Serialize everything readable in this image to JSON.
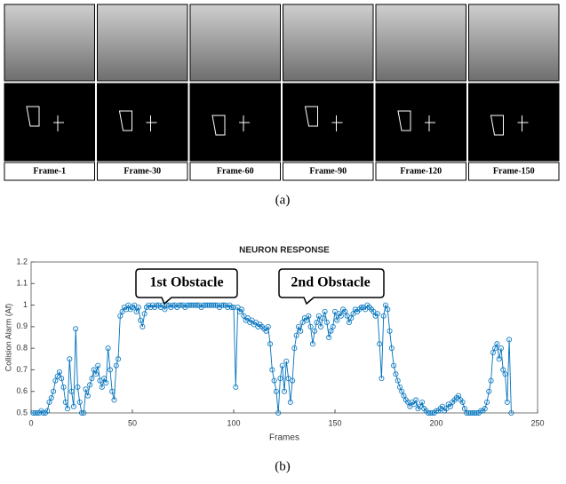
{
  "figure_a": {
    "frames": [
      "Frame-1",
      "Frame-30",
      "Frame-60",
      "Frame-90",
      "Frame-120",
      "Frame-150"
    ],
    "caption": "(a)"
  },
  "chart_data": {
    "type": "line",
    "title": "NEURON RESPONSE",
    "xlabel": "Frames",
    "ylabel": "Collision Alarm (Af)",
    "annotations": [
      "1st Obstacle",
      "2nd Obstacle"
    ],
    "caption": "(b)",
    "color": "#0072bd",
    "xlim": [
      0,
      250
    ],
    "xticks": [
      0,
      50,
      100,
      150,
      200,
      250
    ],
    "ylim": [
      0.5,
      1.2
    ],
    "yticks": [
      0.5,
      0.6,
      0.7,
      0.8,
      0.9,
      1,
      1.1,
      1.2
    ],
    "x": [
      1,
      2,
      3,
      4,
      5,
      6,
      7,
      8,
      9,
      10,
      11,
      12,
      13,
      14,
      15,
      16,
      17,
      18,
      19,
      20,
      21,
      22,
      23,
      24,
      25,
      26,
      27,
      28,
      29,
      30,
      31,
      32,
      33,
      34,
      35,
      36,
      37,
      38,
      39,
      40,
      41,
      42,
      43,
      44,
      45,
      46,
      47,
      48,
      49,
      50,
      51,
      52,
      53,
      54,
      55,
      56,
      57,
      58,
      59,
      60,
      61,
      62,
      63,
      64,
      65,
      66,
      67,
      68,
      69,
      70,
      71,
      72,
      73,
      74,
      75,
      76,
      77,
      78,
      79,
      80,
      81,
      82,
      83,
      84,
      85,
      86,
      87,
      88,
      89,
      90,
      91,
      92,
      93,
      94,
      95,
      96,
      97,
      98,
      99,
      100,
      101,
      102,
      103,
      104,
      105,
      106,
      107,
      108,
      109,
      110,
      111,
      112,
      113,
      114,
      115,
      116,
      117,
      118,
      119,
      120,
      121,
      122,
      123,
      124,
      125,
      126,
      127,
      128,
      129,
      130,
      131,
      132,
      133,
      134,
      135,
      136,
      137,
      138,
      139,
      140,
      141,
      142,
      143,
      144,
      145,
      146,
      147,
      148,
      149,
      150,
      151,
      152,
      153,
      154,
      155,
      156,
      157,
      158,
      159,
      160,
      161,
      162,
      163,
      164,
      165,
      166,
      167,
      168,
      169,
      170,
      171,
      172,
      173,
      174,
      175,
      176,
      177,
      178,
      179,
      180,
      181,
      182,
      183,
      184,
      185,
      186,
      187,
      188,
      189,
      190,
      191,
      192,
      193,
      194,
      195,
      196,
      197,
      198,
      199,
      200,
      201,
      202,
      203,
      204,
      205,
      206,
      207,
      208,
      209,
      210,
      211,
      212,
      213,
      214,
      215,
      216,
      217,
      218,
      219,
      220,
      221,
      222,
      223,
      224,
      225,
      226,
      227,
      228,
      229,
      230,
      231,
      232,
      233,
      234,
      235,
      236,
      237
    ],
    "values": [
      0.5,
      0.5,
      0.5,
      0.5,
      0.51,
      0.5,
      0.5,
      0.51,
      0.55,
      0.57,
      0.6,
      0.65,
      0.67,
      0.69,
      0.66,
      0.62,
      0.55,
      0.52,
      0.75,
      0.6,
      0.53,
      0.89,
      0.62,
      0.55,
      0.5,
      0.5,
      0.61,
      0.58,
      0.63,
      0.66,
      0.7,
      0.68,
      0.72,
      0.65,
      0.62,
      0.66,
      0.64,
      0.8,
      0.7,
      0.6,
      0.56,
      0.72,
      0.75,
      0.95,
      0.97,
      0.99,
      0.98,
      1.0,
      0.98,
      0.99,
      1.0,
      0.97,
      0.99,
      0.93,
      0.9,
      0.96,
      0.99,
      1.0,
      0.99,
      1.0,
      0.99,
      1.0,
      1.0,
      0.99,
      1.0,
      0.98,
      1.0,
      1.0,
      0.99,
      1.0,
      1.0,
      0.99,
      1.0,
      1.0,
      1.0,
      0.99,
      1.0,
      1.0,
      1.0,
      1.0,
      1.0,
      1.0,
      1.0,
      0.99,
      1.0,
      1.0,
      1.0,
      1.0,
      1.0,
      1.0,
      1.0,
      1.0,
      0.99,
      1.0,
      1.0,
      1.0,
      0.99,
      1.0,
      0.99,
      0.99,
      0.62,
      0.99,
      0.97,
      0.98,
      0.95,
      0.93,
      0.94,
      0.92,
      0.93,
      0.91,
      0.92,
      0.9,
      0.91,
      0.9,
      0.89,
      0.88,
      0.9,
      0.82,
      0.7,
      0.65,
      0.6,
      0.5,
      0.66,
      0.72,
      0.6,
      0.74,
      0.66,
      0.55,
      0.65,
      0.8,
      0.86,
      0.9,
      0.88,
      0.92,
      0.94,
      0.93,
      0.95,
      0.9,
      0.82,
      0.88,
      0.92,
      0.95,
      0.9,
      0.94,
      0.97,
      0.92,
      0.85,
      0.88,
      0.9,
      0.97,
      0.93,
      0.96,
      0.95,
      0.98,
      0.97,
      0.95,
      0.92,
      0.94,
      0.96,
      0.98,
      0.97,
      0.98,
      0.99,
      0.99,
      0.98,
      1.0,
      0.99,
      0.98,
      0.97,
      0.95,
      0.96,
      0.82,
      0.66,
      0.95,
      1.0,
      0.98,
      0.88,
      0.8,
      0.72,
      0.68,
      0.65,
      0.62,
      0.6,
      0.58,
      0.56,
      0.55,
      0.53,
      0.55,
      0.54,
      0.56,
      0.52,
      0.53,
      0.55,
      0.52,
      0.51,
      0.5,
      0.5,
      0.5,
      0.5,
      0.51,
      0.51,
      0.52,
      0.53,
      0.51,
      0.52,
      0.54,
      0.53,
      0.55,
      0.56,
      0.57,
      0.58,
      0.56,
      0.55,
      0.52,
      0.5,
      0.5,
      0.5,
      0.5,
      0.5,
      0.5,
      0.5,
      0.51,
      0.51,
      0.52,
      0.55,
      0.6,
      0.65,
      0.78,
      0.8,
      0.82,
      0.75,
      0.8,
      0.7,
      0.68,
      0.55,
      0.84,
      0.5
    ]
  }
}
